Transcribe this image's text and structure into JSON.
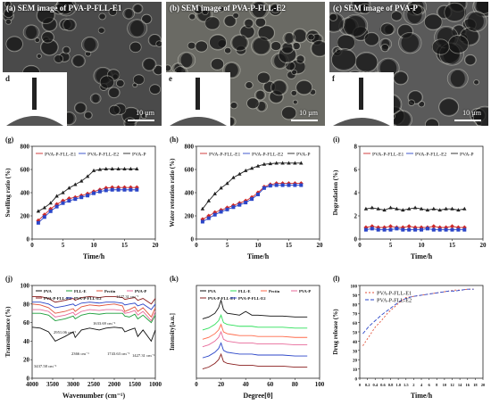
{
  "sem": [
    {
      "title": "(a) SEM image of PVA-P-FLL-E1",
      "inset_label": "d",
      "scale": "10 µm",
      "tone": "#4a4a4a"
    },
    {
      "title": "(b) SEM image of PVA-P-FLL-E2",
      "inset_label": "e",
      "scale": "10 µm",
      "tone": "#6a6a64"
    },
    {
      "title": "(c) SEM image of PVA-P",
      "inset_label": "f",
      "scale": "10 µm",
      "tone": "#5a5a5a"
    }
  ],
  "chart_data": [
    {
      "id": "g",
      "panel_label": "(g)",
      "type": "line",
      "ylabel": "Swelling ratio (%)",
      "xlabel": "Time/h",
      "xlim": [
        0,
        20
      ],
      "ylim": [
        0,
        800
      ],
      "xticks": [
        "0",
        "5",
        "10",
        "15",
        "20"
      ],
      "yticks": [
        "0",
        "200",
        "400",
        "600",
        "800"
      ],
      "x": [
        1,
        2,
        3,
        4,
        5,
        6,
        7,
        8,
        9,
        10,
        11,
        12,
        13,
        14,
        15,
        16,
        17
      ],
      "series": [
        {
          "name": "PVA-P-FLL-E1",
          "color": "#cc2a2a",
          "marker": "diamond",
          "values": [
            160,
            210,
            260,
            300,
            330,
            350,
            360,
            375,
            390,
            410,
            425,
            440,
            445,
            445,
            445,
            445,
            445
          ]
        },
        {
          "name": "PVA-P-FLL-E2",
          "color": "#2b46c8",
          "marker": "square",
          "values": [
            140,
            190,
            240,
            280,
            310,
            330,
            345,
            360,
            375,
            395,
            410,
            420,
            425,
            425,
            425,
            425,
            425
          ]
        },
        {
          "name": "PVA-P",
          "color": "#222222",
          "marker": "triangle",
          "values": [
            240,
            270,
            310,
            370,
            400,
            440,
            470,
            500,
            540,
            590,
            600,
            605,
            605,
            605,
            605,
            605,
            605
          ]
        }
      ]
    },
    {
      "id": "h",
      "panel_label": "(h)",
      "type": "line",
      "ylabel": "Water retention ratio (%)",
      "xlabel": "Time/h",
      "xlim": [
        0,
        20
      ],
      "ylim": [
        0,
        800
      ],
      "xticks": [
        "0",
        "5",
        "10",
        "15",
        "20"
      ],
      "yticks": [
        "0",
        "200",
        "400",
        "600",
        "800"
      ],
      "x": [
        1,
        2,
        3,
        4,
        5,
        6,
        7,
        8,
        9,
        10,
        11,
        12,
        13,
        14,
        15,
        16,
        17
      ],
      "series": [
        {
          "name": "PVA-P-FLL-E1",
          "color": "#cc2a2a",
          "marker": "diamond",
          "values": [
            170,
            200,
            230,
            250,
            270,
            290,
            310,
            330,
            360,
            400,
            450,
            470,
            480,
            480,
            480,
            480,
            480
          ]
        },
        {
          "name": "PVA-P-FLL-E2",
          "color": "#2b46c8",
          "marker": "square",
          "values": [
            150,
            180,
            210,
            235,
            255,
            275,
            295,
            315,
            345,
            385,
            440,
            460,
            465,
            465,
            465,
            465,
            465
          ]
        },
        {
          "name": "PVA-P",
          "color": "#222222",
          "marker": "triangle",
          "values": [
            260,
            330,
            390,
            440,
            480,
            530,
            560,
            590,
            610,
            630,
            645,
            650,
            655,
            655,
            655,
            655,
            655
          ]
        }
      ]
    },
    {
      "id": "i",
      "panel_label": "(i)",
      "type": "line",
      "ylabel": "Degradation (%)",
      "xlabel": "Time/h",
      "xlim": [
        0,
        20
      ],
      "ylim": [
        0,
        8
      ],
      "xticks": [
        "0",
        "5",
        "10",
        "15",
        "20"
      ],
      "yticks": [
        "0",
        "2",
        "4",
        "6",
        "8"
      ],
      "x": [
        1,
        2,
        3,
        4,
        5,
        6,
        7,
        8,
        9,
        10,
        11,
        12,
        13,
        14,
        15,
        16,
        17
      ],
      "series": [
        {
          "name": "PVA-P-FLL-E1",
          "color": "#cc2a2a",
          "marker": "diamond",
          "values": [
            1.0,
            1.1,
            1.0,
            1.0,
            1.1,
            1.0,
            1.0,
            1.1,
            1.0,
            1.0,
            1.0,
            1.1,
            1.0,
            1.0,
            1.1,
            1.0,
            1.0
          ]
        },
        {
          "name": "PVA-P-FLL-E2",
          "color": "#2b46c8",
          "marker": "square",
          "values": [
            0.8,
            0.9,
            0.8,
            0.8,
            0.8,
            0.9,
            0.8,
            0.8,
            0.8,
            0.8,
            0.9,
            0.8,
            0.8,
            0.8,
            0.8,
            0.8,
            0.8
          ]
        },
        {
          "name": "PVA-P",
          "color": "#222222",
          "marker": "triangle",
          "values": [
            2.6,
            2.7,
            2.6,
            2.5,
            2.7,
            2.6,
            2.5,
            2.6,
            2.7,
            2.6,
            2.5,
            2.6,
            2.5,
            2.6,
            2.6,
            2.5,
            2.6
          ]
        }
      ]
    },
    {
      "id": "j",
      "panel_label": "(j)",
      "type": "line",
      "ylabel": "Transmittance (%)",
      "xlabel": "Wavenumber (cm⁻¹)",
      "xlim": [
        4000,
        1000
      ],
      "ylim": [
        0,
        100
      ],
      "xticks": [
        "4000",
        "3500",
        "3000",
        "2500",
        "2000",
        "1500",
        "1000"
      ],
      "yticks": [
        "0",
        "20",
        "40",
        "60",
        "80",
        "100"
      ],
      "legend": [
        "PVA",
        "FLL-E",
        "Pectin",
        "PVA-P",
        "PVA-P-FLL-E1",
        "PVA-P-FLL-E2"
      ],
      "annotations": [
        "1427.31 cm⁻¹",
        "1633.69 cm⁻¹",
        "2951.06 cm⁻¹",
        "2366 cm⁻¹",
        "1743.63 cm⁻¹",
        "1427.31 cm⁻¹",
        "3437.58 cm⁻¹"
      ],
      "x": [
        4000,
        3800,
        3600,
        3437,
        3200,
        3000,
        2951,
        2800,
        2600,
        2366,
        2200,
        2000,
        1800,
        1743,
        1633,
        1500,
        1427,
        1300,
        1100,
        1000
      ],
      "series": [
        {
          "name": "PVA",
          "color": "#111111",
          "values": [
            55,
            54,
            50,
            40,
            45,
            50,
            44,
            52,
            54,
            52,
            54,
            55,
            54,
            50,
            52,
            54,
            45,
            52,
            40,
            52
          ]
        },
        {
          "name": "FLL-E",
          "color": "#1b9e3a",
          "values": [
            70,
            70,
            68,
            62,
            64,
            67,
            64,
            68,
            70,
            69,
            70,
            70,
            70,
            67,
            66,
            69,
            64,
            68,
            60,
            68
          ]
        },
        {
          "name": "Pectin",
          "color": "#e0523a",
          "values": [
            80,
            79,
            76,
            70,
            72,
            75,
            72,
            77,
            79,
            78,
            79,
            80,
            78,
            72,
            74,
            77,
            72,
            76,
            66,
            76
          ]
        },
        {
          "name": "PVA-P",
          "color": "#e86a9a",
          "values": [
            74,
            74,
            72,
            66,
            68,
            71,
            68,
            72,
            74,
            73,
            74,
            74,
            73,
            70,
            71,
            73,
            68,
            72,
            62,
            72
          ]
        },
        {
          "name": "PVA-P-FLL-E1",
          "color": "#8a1f1f",
          "values": [
            88,
            88,
            86,
            82,
            84,
            86,
            84,
            87,
            88,
            87,
            88,
            88,
            87,
            85,
            86,
            87,
            84,
            86,
            80,
            86
          ]
        },
        {
          "name": "PVA-P-FLL-E2",
          "color": "#2b46c8",
          "values": [
            82,
            82,
            80,
            76,
            78,
            80,
            78,
            81,
            82,
            81,
            82,
            82,
            81,
            79,
            80,
            81,
            78,
            80,
            74,
            80
          ]
        }
      ]
    },
    {
      "id": "k",
      "panel_label": "(k)",
      "type": "line",
      "ylabel": "Intensity[a.u.]",
      "xlabel": "Degree[θ]",
      "xlim": [
        0,
        100
      ],
      "ylim": [
        0,
        100
      ],
      "xticks": [
        "0",
        "20",
        "40",
        "60",
        "80",
        "100"
      ],
      "yticks": [],
      "legend": [
        "PVA",
        "FLL-E",
        "Pectin",
        "PVA-P",
        "PVA-P-FLL-E1",
        "PVA-P-FLL-E2"
      ],
      "x": [
        5,
        10,
        15,
        18,
        20,
        22,
        25,
        30,
        35,
        40,
        45,
        50,
        60,
        70,
        80,
        90
      ],
      "series": [
        {
          "name": "PVA",
          "color": "#111111",
          "values": [
            64,
            66,
            70,
            76,
            84,
            74,
            70,
            69,
            68,
            72,
            68,
            68,
            67,
            67,
            66,
            66
          ]
        },
        {
          "name": "FLL-E",
          "color": "#2ee05a",
          "values": [
            52,
            54,
            58,
            62,
            68,
            60,
            58,
            57,
            56,
            56,
            56,
            55,
            55,
            55,
            54,
            54
          ]
        },
        {
          "name": "Pectin",
          "color": "#ff6a4a",
          "values": [
            42,
            44,
            48,
            52,
            58,
            50,
            48,
            47,
            46,
            46,
            46,
            45,
            45,
            45,
            44,
            44
          ]
        },
        {
          "name": "PVA-P",
          "color": "#e86a9a",
          "values": [
            34,
            36,
            40,
            44,
            50,
            42,
            40,
            39,
            38,
            38,
            38,
            37,
            37,
            37,
            36,
            36
          ]
        },
        {
          "name": "PVA-P-FLL-E1",
          "color": "#8a1f1f",
          "values": [
            10,
            12,
            16,
            20,
            26,
            18,
            16,
            15,
            14,
            14,
            14,
            13,
            13,
            13,
            12,
            12
          ]
        },
        {
          "name": "PVA-P-FLL-E2",
          "color": "#2b46c8",
          "values": [
            22,
            24,
            28,
            32,
            38,
            30,
            28,
            27,
            26,
            26,
            26,
            25,
            25,
            25,
            24,
            24
          ]
        }
      ]
    },
    {
      "id": "l",
      "panel_label": "(l)",
      "type": "line",
      "ylabel": "Drug release (%)",
      "xlabel": "Time/h",
      "xlim": [
        0,
        20
      ],
      "ylim": [
        0,
        100
      ],
      "xticks": [
        "0",
        "0.2",
        "0.4",
        "0.6",
        "0.8",
        "1.0",
        "1.5",
        "2",
        "4",
        "6",
        "8",
        "10",
        "12",
        "14",
        "16",
        "18",
        "20"
      ],
      "yticks": [
        "0",
        "10",
        "20",
        "30",
        "40",
        "50",
        "60",
        "70",
        "80",
        "90",
        "100"
      ],
      "x": [
        0.5,
        1.5,
        2.5,
        3.5,
        4.5,
        5.5,
        6.5,
        7.5,
        8.5,
        9.5,
        10.5,
        11.5,
        12.5,
        13.5,
        14.5,
        15.5,
        16.5,
        17.5,
        18.5
      ],
      "series": [
        {
          "name": "PVA-P-FLL-E1",
          "color": "#e0523a",
          "dash": "2,2",
          "values": [
            35,
            45,
            55,
            62,
            70,
            76,
            82,
            87,
            88,
            89,
            90,
            91,
            92,
            93,
            94,
            95,
            95,
            96,
            96
          ]
        },
        {
          "name": "PVA-P-FLL-E2",
          "color": "#2b46c8",
          "dash": "4,2",
          "values": [
            48,
            56,
            62,
            68,
            73,
            78,
            83,
            86,
            88,
            89,
            90,
            91,
            92,
            93,
            94,
            94,
            95,
            96,
            96
          ]
        }
      ]
    }
  ]
}
